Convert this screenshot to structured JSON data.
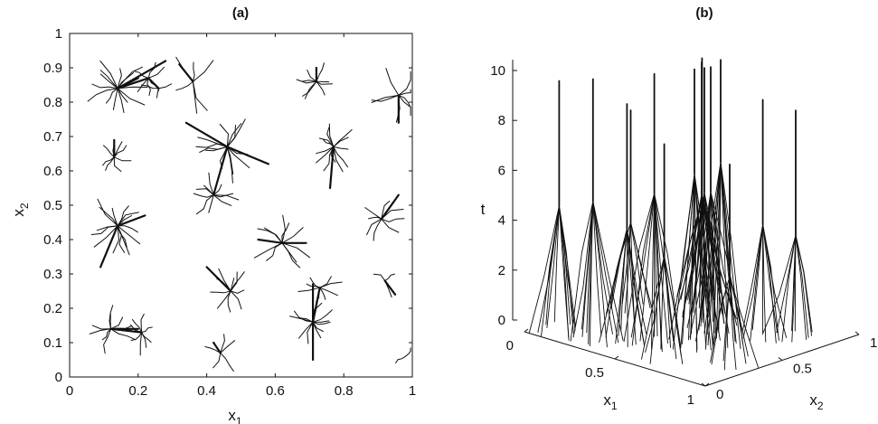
{
  "chart_data": [
    {
      "type": "line",
      "title": "(a)",
      "xlabel": "x",
      "xlabel_sub": "1",
      "ylabel": "x",
      "ylabel_sub": "2",
      "xlim": [
        0,
        1
      ],
      "ylim": [
        0,
        1
      ],
      "xticks": [
        "0",
        "0.2",
        "0.4",
        "0.6",
        "0.8",
        "1"
      ],
      "yticks": [
        "0",
        "0.1",
        "0.2",
        "0.3",
        "0.4",
        "0.5",
        "0.6",
        "0.7",
        "0.8",
        "0.9",
        "1"
      ],
      "grid": false,
      "clusters": [
        {
          "center": [
            0.14,
            0.84
          ],
          "branches": 14,
          "spread": 0.09,
          "trunk": [
            [
              0.2,
              0.87
            ],
            [
              0.28,
              0.92
            ]
          ]
        },
        {
          "center": [
            0.23,
            0.87
          ],
          "branches": 6,
          "spread": 0.06,
          "trunk": [
            [
              0.14,
              0.84
            ]
          ]
        },
        {
          "center": [
            0.26,
            0.84
          ],
          "branches": 3,
          "spread": 0.05,
          "trunk": [
            [
              0.23,
              0.87
            ]
          ]
        },
        {
          "center": [
            0.36,
            0.86
          ],
          "branches": 6,
          "spread": 0.09,
          "trunk": [
            [
              0.32,
              0.91
            ]
          ]
        },
        {
          "center": [
            0.72,
            0.86
          ],
          "branches": 9,
          "spread": 0.06,
          "trunk": [
            [
              0.72,
              0.9
            ]
          ]
        },
        {
          "center": [
            0.96,
            0.82
          ],
          "branches": 8,
          "spread": 0.08,
          "trunk": [
            [
              0.96,
              0.74
            ]
          ]
        },
        {
          "center": [
            0.13,
            0.64
          ],
          "branches": 8,
          "spread": 0.05,
          "trunk": [
            [
              0.13,
              0.69
            ]
          ]
        },
        {
          "center": [
            0.46,
            0.67
          ],
          "branches": 13,
          "spread": 0.1,
          "trunk": [
            [
              0.34,
              0.74
            ],
            [
              0.58,
              0.62
            ]
          ]
        },
        {
          "center": [
            0.42,
            0.53
          ],
          "branches": 10,
          "spread": 0.07,
          "trunk": [
            [
              0.46,
              0.67
            ]
          ]
        },
        {
          "center": [
            0.77,
            0.67
          ],
          "branches": 13,
          "spread": 0.07,
          "trunk": [
            [
              0.76,
              0.55
            ]
          ]
        },
        {
          "center": [
            0.14,
            0.44
          ],
          "branches": 15,
          "spread": 0.09,
          "trunk": [
            [
              0.22,
              0.47
            ],
            [
              0.09,
              0.32
            ]
          ]
        },
        {
          "center": [
            0.91,
            0.46
          ],
          "branches": 8,
          "spread": 0.07,
          "trunk": [
            [
              0.96,
              0.53
            ]
          ]
        },
        {
          "center": [
            0.62,
            0.39
          ],
          "branches": 10,
          "spread": 0.09,
          "trunk": [
            [
              0.55,
              0.4
            ],
            [
              0.69,
              0.39
            ]
          ]
        },
        {
          "center": [
            0.92,
            0.28
          ],
          "branches": 3,
          "spread": 0.05,
          "trunk": [
            [
              0.95,
              0.24
            ]
          ]
        },
        {
          "center": [
            0.47,
            0.25
          ],
          "branches": 10,
          "spread": 0.07,
          "trunk": [
            [
              0.4,
              0.32
            ]
          ]
        },
        {
          "center": [
            0.71,
            0.16
          ],
          "branches": 12,
          "spread": 0.07,
          "trunk": [
            [
              0.71,
              0.27
            ],
            [
              0.71,
              0.05
            ]
          ]
        },
        {
          "center": [
            0.73,
            0.26
          ],
          "branches": 8,
          "spread": 0.06,
          "trunk": [
            [
              0.71,
              0.16
            ]
          ]
        },
        {
          "center": [
            0.12,
            0.14
          ],
          "branches": 10,
          "spread": 0.07,
          "trunk": [
            [
              0.2,
              0.14
            ]
          ]
        },
        {
          "center": [
            0.21,
            0.13
          ],
          "branches": 8,
          "spread": 0.06,
          "trunk": [
            [
              0.12,
              0.14
            ]
          ]
        },
        {
          "center": [
            0.44,
            0.07
          ],
          "branches": 5,
          "spread": 0.06,
          "trunk": [
            [
              0.42,
              0.1
            ]
          ]
        },
        {
          "center": [
            0.98,
            0.06
          ],
          "branches": 2,
          "spread": 0.04,
          "trunk": []
        }
      ]
    },
    {
      "type": "line",
      "title": "(b)",
      "xlabel": "x",
      "xlabel_sub": "1",
      "ylabel": "x",
      "ylabel_sub": "2",
      "zlabel": "t",
      "xlim": [
        0,
        1
      ],
      "ylim": [
        0,
        1
      ],
      "zlim": [
        0,
        10
      ],
      "xticks": [
        "0",
        "0.5",
        "1"
      ],
      "yticks": [
        "0",
        "0.5",
        "1"
      ],
      "zticks": [
        "0",
        "2",
        "4",
        "6",
        "8",
        "10"
      ],
      "grid": false,
      "trees": [
        {
          "x1": 0.09,
          "x2": 0.12,
          "root_t": 5.0,
          "top_t": 10.0,
          "branches": 12
        },
        {
          "x1": 0.26,
          "x2": 0.14,
          "root_t": 5.5,
          "top_t": 10.4,
          "branches": 12
        },
        {
          "x1": 0.38,
          "x2": 0.22,
          "root_t": 4.5,
          "top_t": 9.5,
          "branches": 10
        },
        {
          "x1": 0.48,
          "x2": 0.28,
          "root_t": 6.0,
          "top_t": 10.8,
          "branches": 12
        },
        {
          "x1": 0.6,
          "x2": 0.4,
          "root_t": 6.8,
          "top_t": 11.0,
          "branches": 14
        },
        {
          "x1": 0.66,
          "x2": 0.5,
          "root_t": 7.2,
          "top_t": 11.3,
          "branches": 14
        },
        {
          "x1": 0.52,
          "x2": 0.6,
          "root_t": 5.5,
          "top_t": 10.5,
          "branches": 12
        },
        {
          "x1": 0.4,
          "x2": 0.7,
          "root_t": 5.0,
          "top_t": 10.0,
          "branches": 10
        },
        {
          "x1": 0.3,
          "x2": 0.8,
          "root_t": 4.5,
          "top_t": 9.8,
          "branches": 10
        },
        {
          "x1": 0.74,
          "x2": 0.68,
          "root_t": 4.5,
          "top_t": 9.5,
          "branches": 10
        },
        {
          "x1": 0.82,
          "x2": 0.8,
          "root_t": 4.0,
          "top_t": 9.0,
          "branches": 10
        },
        {
          "x1": 0.2,
          "x2": 0.92,
          "root_t": 3.8,
          "top_t": 9.5,
          "branches": 10
        },
        {
          "x1": 0.88,
          "x2": 0.3,
          "root_t": 3.5,
          "top_t": 8.0,
          "branches": 8
        },
        {
          "x1": 0.62,
          "x2": 0.18,
          "root_t": 4.0,
          "top_t": 8.5,
          "branches": 8
        },
        {
          "x1": 0.12,
          "x2": 0.55,
          "root_t": 3.5,
          "top_t": 8.0,
          "branches": 8
        }
      ]
    }
  ]
}
